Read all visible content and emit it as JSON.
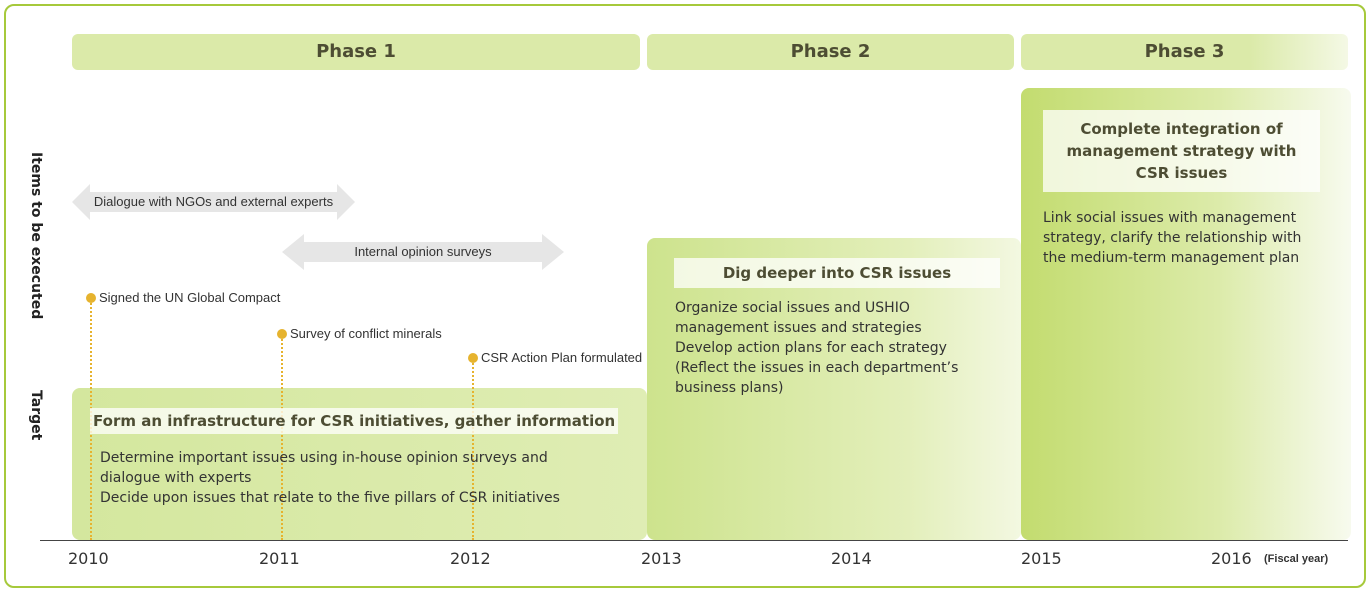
{
  "phases": [
    "Phase 1",
    "Phase 2",
    "Phase 3"
  ],
  "row_labels": [
    "Items to be executed",
    "Target"
  ],
  "arrows": [
    "Dialogue with NGOs and external experts",
    "Internal opinion surveys"
  ],
  "milestones": [
    "Signed the UN Global Compact",
    "Survey of conflict minerals",
    "CSR Action Plan formulated"
  ],
  "targets": [
    {
      "title": "Form an infrastructure for CSR initiatives, gather information",
      "lines": [
        "Determine important issues using in-house opinion surveys and dialogue with experts",
        "Decide upon issues that relate to the five pillars of CSR initiatives"
      ]
    },
    {
      "title": "Dig deeper into CSR issues",
      "lines": [
        "Organize social issues and USHIO management issues and strategies",
        "Develop action plans for each strategy",
        "(Reflect the issues in each department’s business plans)"
      ]
    },
    {
      "title": "Complete integration of management strategy with CSR issues",
      "lines": [
        "Link social issues with management strategy, clarify the relationship with the medium-term management plan"
      ]
    }
  ],
  "years": [
    "2010",
    "2011",
    "2012",
    "2013",
    "2014",
    "2015",
    "2016"
  ],
  "year_unit": "(Fiscal year)"
}
